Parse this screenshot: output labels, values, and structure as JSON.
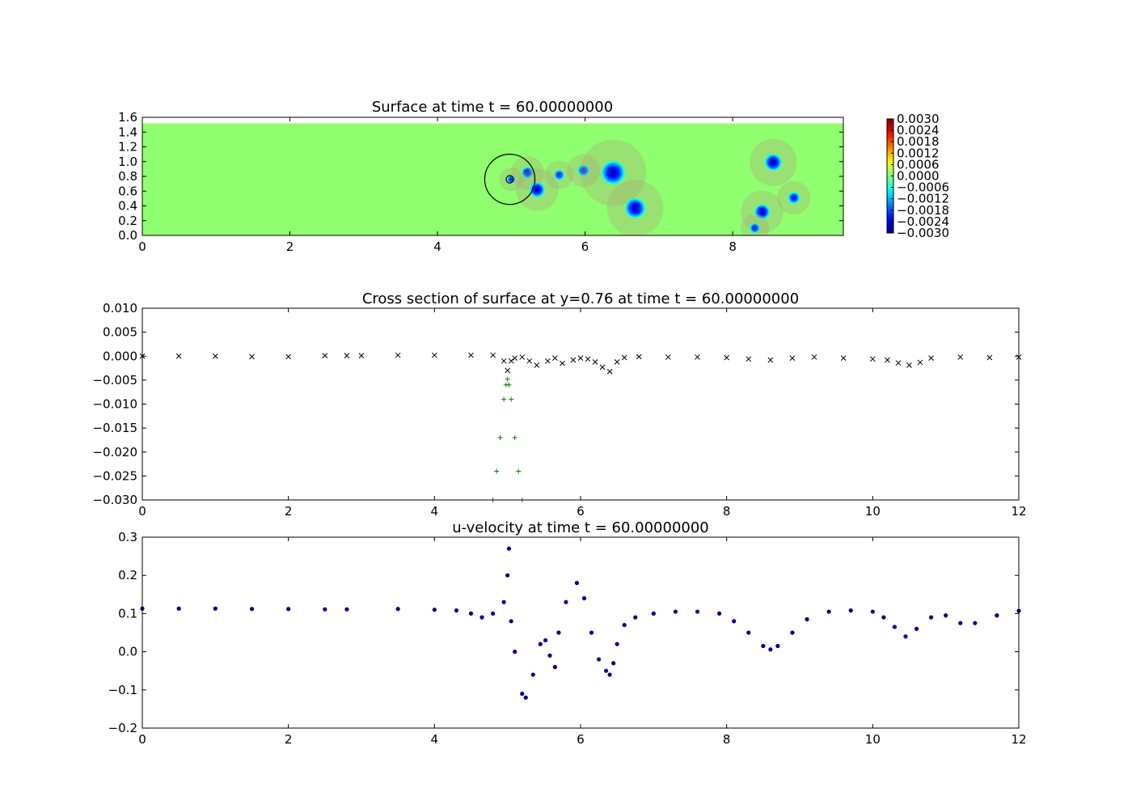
{
  "figure": {
    "background": "#ffffff"
  },
  "chart_data": [
    {
      "id": "surface",
      "type": "heatmap",
      "title": "Surface at time t =    60.00000000",
      "xlim": [
        0,
        9.5
      ],
      "ylim": [
        0,
        1.6
      ],
      "xticks": [
        "0",
        "2",
        "4",
        "6",
        "8"
      ],
      "yticks": [
        "0.0",
        "0.2",
        "0.4",
        "0.6",
        "0.8",
        "1.0",
        "1.2",
        "1.4",
        "1.6"
      ],
      "data_extent_y": [
        0,
        1.52
      ],
      "colormap": "jet",
      "colorbar": {
        "min": -0.003,
        "max": 0.003,
        "ticks": [
          "0.0030",
          "0.0024",
          "0.0018",
          "0.0012",
          "0.0006",
          "0.0000",
          "−0.0006",
          "−0.0012",
          "−0.0018",
          "−0.0024",
          "−0.0030"
        ]
      },
      "background_value": 0.0001,
      "depressions": [
        {
          "x": 5.0,
          "y": 0.76,
          "r": 0.05,
          "depth": -0.0025
        },
        {
          "x": 5.22,
          "y": 0.85,
          "r": 0.07,
          "depth": -0.0028
        },
        {
          "x": 5.35,
          "y": 0.62,
          "r": 0.09,
          "depth": -0.003
        },
        {
          "x": 5.65,
          "y": 0.82,
          "r": 0.06,
          "depth": -0.0026
        },
        {
          "x": 5.98,
          "y": 0.88,
          "r": 0.07,
          "depth": -0.0026
        },
        {
          "x": 6.38,
          "y": 0.85,
          "r": 0.14,
          "depth": -0.003
        },
        {
          "x": 6.68,
          "y": 0.37,
          "r": 0.12,
          "depth": -0.003
        },
        {
          "x": 8.55,
          "y": 0.99,
          "r": 0.1,
          "depth": -0.003
        },
        {
          "x": 8.4,
          "y": 0.32,
          "r": 0.09,
          "depth": -0.003
        },
        {
          "x": 8.83,
          "y": 0.51,
          "r": 0.07,
          "depth": -0.0026
        },
        {
          "x": 8.3,
          "y": 0.1,
          "r": 0.06,
          "depth": -0.0026
        }
      ],
      "circles": [
        {
          "x": 4.98,
          "y": 0.76,
          "r": 0.34
        },
        {
          "x": 4.98,
          "y": 0.76,
          "r": 0.05
        }
      ]
    },
    {
      "id": "cross-section",
      "type": "scatter",
      "title": "Cross section of surface at y=0.76 at time t =    60.00000000",
      "xlim": [
        0,
        12
      ],
      "ylim": [
        -0.03,
        0.01
      ],
      "xticks": [
        "0",
        "2",
        "4",
        "6",
        "8",
        "10",
        "12"
      ],
      "yticks": [
        "0.010",
        "0.005",
        "0.000",
        "−0.005",
        "−0.010",
        "−0.015",
        "−0.020",
        "−0.025",
        "−0.030"
      ],
      "series": [
        {
          "marker": "x",
          "color": "#000000",
          "x": [
            0,
            0.5,
            1.0,
            1.5,
            2.0,
            2.5,
            2.8,
            3.0,
            3.5,
            4.0,
            4.5,
            4.8,
            4.95,
            5.0,
            5.05,
            5.1,
            5.2,
            5.3,
            5.4,
            5.55,
            5.65,
            5.75,
            5.9,
            6.0,
            6.1,
            6.2,
            6.3,
            6.4,
            6.5,
            6.6,
            6.8,
            7.2,
            7.6,
            8.0,
            8.3,
            8.6,
            8.9,
            9.2,
            9.6,
            10.0,
            10.2,
            10.35,
            10.5,
            10.65,
            10.8,
            11.2,
            11.6,
            12.0
          ],
          "y": [
            0.0,
            0.0,
            0.0,
            -0.0001,
            -0.0001,
            0.0001,
            0.0001,
            0.0001,
            0.0002,
            0.0002,
            0.0002,
            0.0002,
            -0.001,
            -0.003,
            -0.001,
            -0.0004,
            -0.0002,
            -0.001,
            -0.0019,
            -0.001,
            -0.0004,
            -0.0015,
            -0.0008,
            -0.0004,
            -0.0006,
            -0.0012,
            -0.0023,
            -0.0032,
            -0.0012,
            -0.0003,
            -0.0001,
            -0.0002,
            -0.0002,
            -0.0003,
            -0.0006,
            -0.0008,
            -0.0004,
            -0.0002,
            -0.0004,
            -0.0006,
            -0.0008,
            -0.0014,
            -0.0019,
            -0.0013,
            -0.0004,
            -0.0002,
            -0.0003,
            -0.0002
          ]
        },
        {
          "marker": "+",
          "color": "#008000",
          "x": [
            4.8,
            4.85,
            4.9,
            4.95,
            4.98,
            5.0,
            5.02,
            5.05,
            5.1,
            5.15,
            5.2
          ],
          "y": [
            -0.03,
            -0.024,
            -0.017,
            -0.009,
            -0.006,
            -0.0048,
            -0.006,
            -0.009,
            -0.017,
            -0.024,
            -0.03
          ]
        }
      ]
    },
    {
      "id": "u-velocity",
      "type": "scatter",
      "title": "u-velocity at time t =    60.00000000",
      "xlim": [
        0,
        12
      ],
      "ylim": [
        -0.2,
        0.3
      ],
      "xticks": [
        "0",
        "2",
        "4",
        "6",
        "8",
        "10",
        "12"
      ],
      "yticks": [
        "0.3",
        "0.2",
        "0.1",
        "0.0",
        "−0.1",
        "−0.2"
      ],
      "series": [
        {
          "marker": "o",
          "color": "#00008b",
          "x": [
            0,
            0.5,
            1.0,
            1.5,
            2.0,
            2.5,
            2.8,
            3.5,
            4.0,
            4.3,
            4.5,
            4.65,
            4.8,
            4.95,
            5.0,
            5.02,
            5.05,
            5.1,
            5.2,
            5.25,
            5.35,
            5.45,
            5.52,
            5.58,
            5.65,
            5.7,
            5.8,
            5.95,
            6.05,
            6.15,
            6.25,
            6.35,
            6.4,
            6.45,
            6.5,
            6.6,
            6.75,
            7.0,
            7.3,
            7.6,
            7.9,
            8.1,
            8.3,
            8.5,
            8.6,
            8.7,
            8.9,
            9.1,
            9.4,
            9.7,
            10.0,
            10.15,
            10.3,
            10.45,
            10.6,
            10.8,
            11.0,
            11.2,
            11.4,
            11.7,
            12.0
          ],
          "y": [
            0.113,
            0.113,
            0.113,
            0.112,
            0.112,
            0.111,
            0.111,
            0.112,
            0.11,
            0.108,
            0.1,
            0.09,
            0.1,
            0.13,
            0.2,
            0.27,
            0.08,
            0.0,
            -0.11,
            -0.12,
            -0.06,
            0.02,
            0.03,
            -0.01,
            -0.04,
            0.05,
            0.13,
            0.18,
            0.14,
            0.05,
            -0.02,
            -0.05,
            -0.06,
            -0.03,
            0.02,
            0.07,
            0.09,
            0.1,
            0.105,
            0.105,
            0.1,
            0.08,
            0.05,
            0.015,
            0.006,
            0.015,
            0.05,
            0.085,
            0.105,
            0.108,
            0.105,
            0.09,
            0.065,
            0.04,
            0.06,
            0.09,
            0.095,
            0.075,
            0.075,
            0.095,
            0.107
          ]
        }
      ]
    }
  ]
}
